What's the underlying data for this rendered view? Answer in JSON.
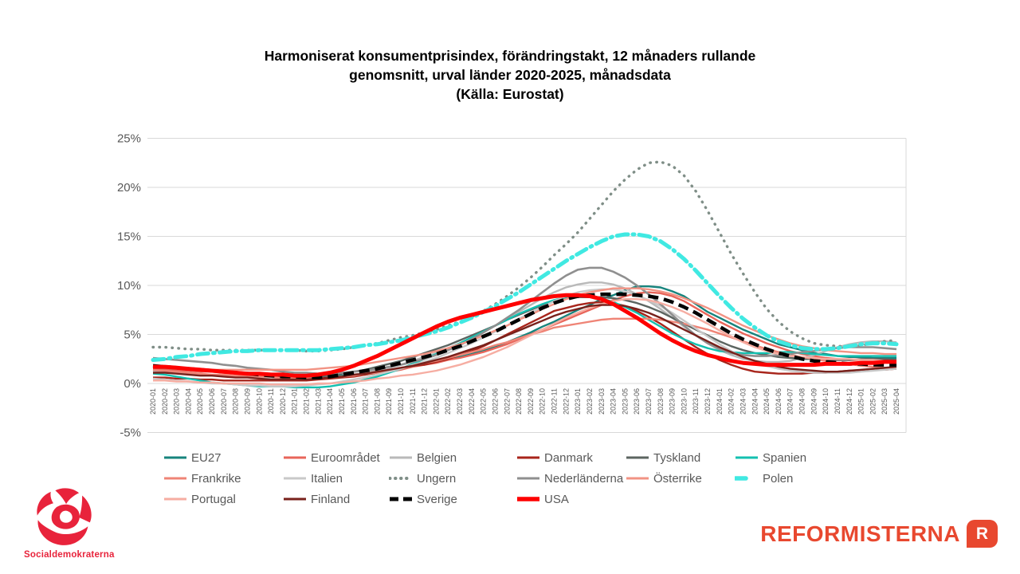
{
  "title": {
    "line1": "Harmoniserat konsumentprisindex, förändringstakt, 12 månaders rullande",
    "line2": "genomsnitt, urval länder 2020-2025, månadsdata",
    "line3": "(Källa: Eurostat)"
  },
  "axis_style": {
    "label_color": "#595959",
    "grid_color": "#d9d9d9"
  },
  "branding": {
    "socialdemokraterna_text": "Socialdemokraterna",
    "socialdemokraterna_red": "#e8233b",
    "reformisterna_text": "REFORMISTERNA",
    "reformisterna_badge_letter": "R",
    "reformisterna_red": "#e8482f"
  },
  "chart_data": {
    "type": "line",
    "title": "Harmoniserat konsumentprisindex, förändringstakt, 12 månaders rullande genomsnitt, urval länder 2020-2025, månadsdata (Källa: Eurostat)",
    "xlabel": "",
    "ylabel": "",
    "ylim": [
      -5,
      25
    ],
    "yticks": [
      25,
      20,
      15,
      10,
      5,
      0,
      -5
    ],
    "ytick_suffix": "%",
    "grid": true,
    "legend_position": "bottom",
    "x": [
      "2020-01",
      "2020-02",
      "2020-03",
      "2020-04",
      "2020-05",
      "2020-06",
      "2020-07",
      "2020-08",
      "2020-09",
      "2020-10",
      "2020-11",
      "2020-12",
      "2021-01",
      "2021-02",
      "2021-03",
      "2021-04",
      "2021-05",
      "2021-06",
      "2021-07",
      "2021-08",
      "2021-09",
      "2021-10",
      "2021-11",
      "2021-12",
      "2022-01",
      "2022-02",
      "2022-03",
      "2022-04",
      "2022-05",
      "2022-06",
      "2022-07",
      "2022-08",
      "2022-09",
      "2022-10",
      "2022-11",
      "2022-12",
      "2023-01",
      "2023-02",
      "2023-03",
      "2023-04",
      "2023-05",
      "2023-06",
      "2023-07",
      "2023-08",
      "2023-09",
      "2023-10",
      "2023-11",
      "2023-12",
      "2024-01",
      "2024-02",
      "2024-03",
      "2024-04",
      "2024-05",
      "2024-06",
      "2024-07",
      "2024-08",
      "2024-09",
      "2024-10",
      "2024-11",
      "2024-12",
      "2025-01",
      "2025-02",
      "2025-03",
      "2025-04"
    ],
    "series": [
      {
        "name": "EU27",
        "color": "#17847d",
        "style": "solid",
        "width": 2.4,
        "values": [
          1.5,
          1.5,
          1.4,
          1.4,
          1.3,
          1.3,
          1.2,
          1.1,
          1.1,
          1.0,
          1.0,
          0.9,
          0.8,
          0.8,
          0.7,
          0.8,
          0.8,
          0.9,
          1.0,
          1.2,
          1.3,
          1.5,
          1.8,
          2.0,
          2.2,
          2.5,
          2.7,
          3.0,
          3.4,
          3.7,
          4.2,
          4.7,
          5.2,
          5.8,
          6.3,
          6.9,
          7.5,
          8.0,
          8.6,
          9.0,
          9.5,
          9.9,
          9.9,
          9.8,
          9.4,
          8.9,
          8.1,
          7.3,
          6.7,
          6.1,
          5.5,
          5.0,
          4.5,
          4.0,
          3.7,
          3.4,
          3.1,
          3.0,
          2.8,
          2.7,
          2.7,
          2.6,
          2.6,
          2.6
        ]
      },
      {
        "name": "Euroområdet",
        "color": "#e8655a",
        "style": "solid",
        "width": 2.4,
        "values": [
          1.4,
          1.4,
          1.3,
          1.3,
          1.2,
          1.2,
          1.1,
          1.0,
          1.0,
          0.9,
          0.9,
          0.8,
          0.7,
          0.7,
          0.6,
          0.7,
          0.7,
          0.8,
          0.9,
          1.1,
          1.2,
          1.4,
          1.7,
          1.9,
          2.1,
          2.4,
          2.6,
          2.9,
          3.2,
          3.6,
          4.0,
          4.5,
          5.0,
          5.5,
          6.0,
          6.5,
          7.0,
          7.5,
          8.0,
          8.5,
          8.9,
          9.2,
          9.3,
          9.2,
          8.9,
          8.4,
          7.7,
          7.0,
          6.3,
          5.7,
          5.1,
          4.6,
          4.1,
          3.7,
          3.3,
          3.0,
          2.8,
          2.6,
          2.5,
          2.4,
          2.4,
          2.3,
          2.3,
          2.3
        ]
      },
      {
        "name": "Belgien",
        "color": "#b9b9b9",
        "style": "solid",
        "width": 2.4,
        "values": [
          1.3,
          1.2,
          1.1,
          1.0,
          0.9,
          0.8,
          0.8,
          0.7,
          0.7,
          0.6,
          0.6,
          0.5,
          0.5,
          0.5,
          0.5,
          0.6,
          0.7,
          0.9,
          1.1,
          1.3,
          1.6,
          1.9,
          2.3,
          2.7,
          3.1,
          3.6,
          4.1,
          4.7,
          5.3,
          5.9,
          6.6,
          7.3,
          8.0,
          8.7,
          9.3,
          9.8,
          10.1,
          10.3,
          10.3,
          10.1,
          9.7,
          9.1,
          8.4,
          7.6,
          6.7,
          5.8,
          4.9,
          4.1,
          3.4,
          2.9,
          2.5,
          2.3,
          2.2,
          2.2,
          2.3,
          2.6,
          2.9,
          3.3,
          3.7,
          4.0,
          4.2,
          4.3,
          4.3,
          4.2
        ]
      },
      {
        "name": "Danmark",
        "color": "#a8251b",
        "style": "solid",
        "width": 2.4,
        "values": [
          0.6,
          0.6,
          0.5,
          0.5,
          0.4,
          0.4,
          0.3,
          0.3,
          0.3,
          0.3,
          0.3,
          0.3,
          0.3,
          0.3,
          0.4,
          0.5,
          0.6,
          0.7,
          0.9,
          1.1,
          1.3,
          1.5,
          1.8,
          1.9,
          2.2,
          2.5,
          2.9,
          3.3,
          3.8,
          4.4,
          5.0,
          5.6,
          6.2,
          6.8,
          7.4,
          7.7,
          8.0,
          8.2,
          8.3,
          8.2,
          7.9,
          7.4,
          6.8,
          6.1,
          5.3,
          4.5,
          3.7,
          3.0,
          2.4,
          1.9,
          1.5,
          1.2,
          1.1,
          1.0,
          1.0,
          1.0,
          1.1,
          1.1,
          1.2,
          1.3,
          1.3,
          1.4,
          1.4,
          1.5
        ]
      },
      {
        "name": "Tyskland",
        "color": "#5c6561",
        "style": "solid",
        "width": 2.4,
        "values": [
          1.7,
          1.7,
          1.6,
          1.5,
          1.4,
          1.3,
          1.2,
          1.1,
          1.0,
          0.9,
          0.8,
          0.7,
          0.7,
          0.7,
          0.7,
          0.8,
          1.0,
          1.2,
          1.4,
          1.7,
          2.0,
          2.3,
          2.7,
          3.1,
          3.5,
          3.9,
          4.4,
          4.9,
          5.4,
          5.9,
          6.5,
          7.0,
          7.5,
          8.0,
          8.4,
          8.7,
          8.8,
          8.8,
          8.8,
          8.7,
          8.5,
          8.2,
          7.8,
          7.3,
          6.7,
          6.1,
          5.5,
          4.9,
          4.3,
          3.8,
          3.4,
          3.1,
          2.9,
          2.7,
          2.6,
          2.5,
          2.5,
          2.4,
          2.4,
          2.4,
          2.5,
          2.5,
          2.5,
          2.4
        ]
      },
      {
        "name": "Spanien",
        "color": "#13c0b0",
        "style": "solid",
        "width": 2.4,
        "values": [
          1.0,
          0.9,
          0.7,
          0.5,
          0.3,
          0.1,
          0.0,
          -0.1,
          -0.2,
          -0.3,
          -0.3,
          -0.3,
          -0.4,
          -0.4,
          -0.4,
          -0.3,
          -0.1,
          0.1,
          0.4,
          0.7,
          1.1,
          1.5,
          2.0,
          2.5,
          3.0,
          3.5,
          4.1,
          4.7,
          5.3,
          5.9,
          6.5,
          7.1,
          7.6,
          8.1,
          8.5,
          8.8,
          8.9,
          8.9,
          8.7,
          8.3,
          7.8,
          7.2,
          6.5,
          5.8,
          5.1,
          4.5,
          4.0,
          3.6,
          3.3,
          3.2,
          3.1,
          3.1,
          3.1,
          3.2,
          3.2,
          3.1,
          3.0,
          2.9,
          2.8,
          2.8,
          2.8,
          2.8,
          2.8,
          2.8
        ]
      },
      {
        "name": "Frankrike",
        "color": "#ef8476",
        "style": "solid",
        "width": 2.4,
        "values": [
          1.4,
          1.3,
          1.2,
          1.1,
          1.0,
          0.9,
          0.9,
          0.8,
          0.8,
          0.7,
          0.7,
          0.5,
          0.5,
          0.5,
          0.5,
          0.6,
          0.7,
          0.8,
          1.0,
          1.1,
          1.3,
          1.5,
          1.8,
          2.1,
          2.3,
          2.6,
          2.9,
          3.2,
          3.5,
          3.9,
          4.2,
          4.6,
          5.0,
          5.3,
          5.7,
          5.9,
          6.1,
          6.3,
          6.5,
          6.6,
          6.6,
          6.6,
          6.6,
          6.5,
          6.3,
          6.1,
          5.8,
          5.5,
          5.1,
          4.7,
          4.3,
          3.9,
          3.5,
          3.2,
          2.9,
          2.7,
          2.5,
          2.3,
          2.1,
          2.0,
          1.8,
          1.7,
          1.6,
          1.5
        ]
      },
      {
        "name": "Italien",
        "color": "#c8c8c8",
        "style": "solid",
        "width": 2.4,
        "values": [
          0.5,
          0.4,
          0.3,
          0.2,
          0.1,
          0.0,
          0.0,
          -0.1,
          -0.2,
          -0.2,
          -0.3,
          -0.3,
          -0.3,
          -0.2,
          -0.1,
          0.0,
          0.2,
          0.4,
          0.6,
          0.9,
          1.2,
          1.5,
          1.9,
          2.2,
          2.6,
          3.1,
          3.6,
          4.1,
          4.7,
          5.3,
          5.9,
          6.6,
          7.2,
          7.8,
          8.4,
          8.9,
          9.3,
          9.5,
          9.6,
          9.6,
          9.4,
          9.0,
          8.5,
          7.9,
          7.2,
          6.4,
          5.6,
          4.8,
          4.0,
          3.3,
          2.7,
          2.2,
          1.8,
          1.5,
          1.3,
          1.2,
          1.1,
          1.1,
          1.1,
          1.1,
          1.2,
          1.3,
          1.4,
          1.5
        ]
      },
      {
        "name": "Ungern",
        "color": "#7f8e87",
        "style": "dotted",
        "width": 3.4,
        "values": [
          3.7,
          3.7,
          3.6,
          3.5,
          3.5,
          3.4,
          3.4,
          3.4,
          3.4,
          3.4,
          3.4,
          3.4,
          3.4,
          3.3,
          3.3,
          3.4,
          3.5,
          3.7,
          3.9,
          4.1,
          4.4,
          4.7,
          4.9,
          5.2,
          5.5,
          5.9,
          6.3,
          6.8,
          7.4,
          8.1,
          8.9,
          9.8,
          10.8,
          11.9,
          13.1,
          14.2,
          15.4,
          16.8,
          18.2,
          19.6,
          20.8,
          21.8,
          22.5,
          22.6,
          22.2,
          21.2,
          19.6,
          17.6,
          15.4,
          13.2,
          11.2,
          9.3,
          7.6,
          6.3,
          5.3,
          4.6,
          4.1,
          3.9,
          3.8,
          3.8,
          3.9,
          4.1,
          4.3,
          4.4
        ]
      },
      {
        "name": "Nederländerna",
        "color": "#8f8f8f",
        "style": "solid",
        "width": 2.6,
        "values": [
          2.6,
          2.5,
          2.4,
          2.3,
          2.2,
          2.1,
          1.9,
          1.8,
          1.6,
          1.5,
          1.4,
          1.2,
          1.1,
          1.1,
          1.0,
          1.0,
          1.1,
          1.2,
          1.3,
          1.5,
          1.7,
          1.9,
          2.2,
          2.5,
          2.9,
          3.4,
          3.9,
          4.5,
          5.2,
          5.9,
          6.7,
          7.5,
          8.4,
          9.3,
          10.2,
          11.0,
          11.6,
          11.8,
          11.8,
          11.4,
          10.8,
          10.0,
          9.1,
          8.1,
          7.0,
          5.9,
          4.9,
          4.1,
          3.5,
          3.1,
          2.9,
          2.8,
          2.8,
          2.9,
          3.0,
          3.2,
          3.3,
          3.5,
          3.6,
          3.7,
          3.7,
          3.7,
          3.6,
          3.5
        ]
      },
      {
        "name": "Österrike",
        "color": "#f29384",
        "style": "solid",
        "width": 2.4,
        "values": [
          1.6,
          1.6,
          1.5,
          1.5,
          1.4,
          1.4,
          1.4,
          1.4,
          1.4,
          1.4,
          1.4,
          1.4,
          1.4,
          1.4,
          1.5,
          1.6,
          1.7,
          1.8,
          2.0,
          2.2,
          2.4,
          2.6,
          2.8,
          3.0,
          3.3,
          3.6,
          4.0,
          4.4,
          4.9,
          5.4,
          5.9,
          6.5,
          7.0,
          7.6,
          8.1,
          8.6,
          9.0,
          9.3,
          9.5,
          9.7,
          9.7,
          9.7,
          9.6,
          9.4,
          9.1,
          8.7,
          8.2,
          7.7,
          7.1,
          6.5,
          5.9,
          5.4,
          4.9,
          4.5,
          4.1,
          3.8,
          3.6,
          3.4,
          3.3,
          3.2,
          3.1,
          3.1,
          3.0,
          3.0
        ]
      },
      {
        "name": "Polen",
        "color": "#40e9e2",
        "style": "dashdot",
        "width": 5,
        "values": [
          2.4,
          2.5,
          2.7,
          2.8,
          3.0,
          3.1,
          3.2,
          3.3,
          3.3,
          3.4,
          3.4,
          3.4,
          3.4,
          3.4,
          3.4,
          3.5,
          3.6,
          3.7,
          3.9,
          4.0,
          4.2,
          4.4,
          4.7,
          5.0,
          5.3,
          5.7,
          6.2,
          6.7,
          7.3,
          7.9,
          8.6,
          9.3,
          10.1,
          10.9,
          11.7,
          12.5,
          13.2,
          13.9,
          14.5,
          15.0,
          15.2,
          15.2,
          15.0,
          14.5,
          13.7,
          12.7,
          11.5,
          10.2,
          8.9,
          7.7,
          6.6,
          5.7,
          4.9,
          4.3,
          3.9,
          3.6,
          3.5,
          3.5,
          3.6,
          3.8,
          4.0,
          4.1,
          4.1,
          4.0
        ]
      },
      {
        "name": "Portugal",
        "color": "#f6ada2",
        "style": "solid",
        "width": 2.4,
        "values": [
          0.3,
          0.3,
          0.2,
          0.2,
          0.1,
          0.1,
          0.0,
          0.0,
          0.0,
          0.0,
          -0.1,
          -0.1,
          -0.1,
          -0.1,
          0.0,
          0.0,
          0.1,
          0.2,
          0.3,
          0.5,
          0.6,
          0.8,
          0.9,
          1.1,
          1.3,
          1.6,
          1.9,
          2.3,
          2.7,
          3.2,
          3.7,
          4.3,
          4.9,
          5.5,
          6.1,
          6.7,
          7.2,
          7.7,
          8.1,
          8.4,
          8.6,
          8.6,
          8.5,
          8.2,
          7.8,
          7.3,
          6.7,
          6.1,
          5.4,
          4.8,
          4.2,
          3.7,
          3.3,
          3.0,
          2.8,
          2.7,
          2.6,
          2.5,
          2.5,
          2.5,
          2.4,
          2.4,
          2.3,
          2.3
        ]
      },
      {
        "name": "Finland",
        "color": "#78211b",
        "style": "solid",
        "width": 2.4,
        "values": [
          1.1,
          1.1,
          1.0,
          0.9,
          0.8,
          0.8,
          0.7,
          0.6,
          0.6,
          0.5,
          0.4,
          0.4,
          0.4,
          0.4,
          0.5,
          0.6,
          0.7,
          0.9,
          1.0,
          1.2,
          1.4,
          1.6,
          1.8,
          2.1,
          2.4,
          2.7,
          3.1,
          3.5,
          3.9,
          4.4,
          4.9,
          5.4,
          5.9,
          6.4,
          6.9,
          7.3,
          7.6,
          7.9,
          8.0,
          8.0,
          7.9,
          7.6,
          7.2,
          6.7,
          6.1,
          5.5,
          4.9,
          4.3,
          3.7,
          3.2,
          2.7,
          2.3,
          2.0,
          1.7,
          1.5,
          1.4,
          1.3,
          1.2,
          1.2,
          1.3,
          1.4,
          1.5,
          1.6,
          1.7
        ]
      },
      {
        "name": "Sverige",
        "color": "#000000",
        "style": "dashed",
        "width": 4.5,
        "values": [
          1.8,
          1.7,
          1.6,
          1.5,
          1.4,
          1.3,
          1.2,
          1.1,
          1.0,
          0.9,
          0.8,
          0.7,
          0.7,
          0.6,
          0.6,
          0.7,
          0.9,
          1.1,
          1.3,
          1.5,
          1.8,
          2.1,
          2.4,
          2.7,
          3.0,
          3.4,
          3.8,
          4.3,
          4.8,
          5.3,
          5.9,
          6.5,
          7.1,
          7.7,
          8.2,
          8.6,
          8.9,
          9.0,
          9.1,
          9.1,
          9.1,
          9.0,
          8.9,
          8.7,
          8.3,
          7.8,
          7.2,
          6.5,
          5.8,
          5.1,
          4.5,
          4.0,
          3.5,
          3.1,
          2.8,
          2.5,
          2.3,
          2.2,
          2.1,
          2.0,
          2.0,
          1.9,
          1.9,
          1.9
        ]
      },
      {
        "name": "USA",
        "color": "#fe0000",
        "style": "solid",
        "width": 5,
        "values": [
          1.7,
          1.7,
          1.6,
          1.5,
          1.4,
          1.3,
          1.2,
          1.1,
          1.0,
          1.0,
          0.9,
          0.9,
          0.8,
          0.8,
          0.9,
          1.1,
          1.4,
          1.8,
          2.3,
          2.8,
          3.4,
          4.0,
          4.6,
          5.2,
          5.8,
          6.3,
          6.7,
          7.0,
          7.3,
          7.6,
          7.9,
          8.2,
          8.5,
          8.7,
          8.9,
          9.0,
          9.0,
          8.9,
          8.6,
          8.1,
          7.4,
          6.7,
          5.9,
          5.1,
          4.4,
          3.8,
          3.3,
          2.9,
          2.6,
          2.3,
          2.1,
          2.0,
          1.9,
          1.9,
          1.9,
          1.9,
          1.9,
          2.0,
          2.0,
          2.0,
          2.1,
          2.1,
          2.2,
          2.2
        ]
      }
    ]
  }
}
